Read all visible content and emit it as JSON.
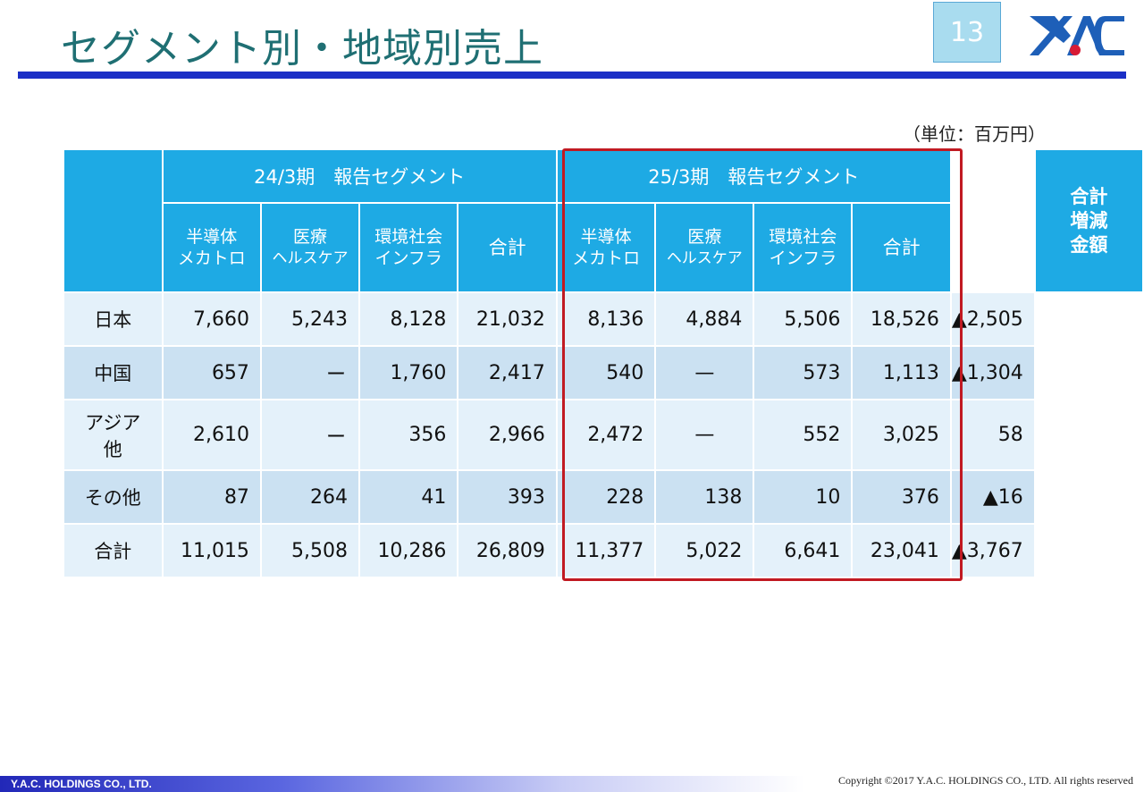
{
  "slide": {
    "title": "セグメント別・地域別売上",
    "page_number": "13",
    "unit_note": "（単位：百万円）",
    "footer_company": "Y.A.C. HOLDINGS CO., LTD.",
    "copyright": "Copyright ©2017 Y.A.C. HOLDINGS CO., LTD.  All rights reserved",
    "colors": {
      "title": "#1f6f73",
      "rule": "#1b2fc6",
      "header": "#1eaae4",
      "highlight": "#c11a22"
    }
  },
  "table": {
    "group_headers": [
      "24/3期　報告セグメント",
      "25/3期　報告セグメント"
    ],
    "total_change_header": [
      "合計",
      "増減",
      "金額"
    ],
    "sub_headers": [
      {
        "line1": "半導体",
        "line2": "メカトロ"
      },
      {
        "line1": "医療",
        "line2": "ヘルスケア"
      },
      {
        "line1": "環境社会",
        "line2": "インフラ"
      },
      {
        "line1": "合計",
        "line2": ""
      },
      {
        "line1": "半導体",
        "line2": "メカトロ"
      },
      {
        "line1": "医療",
        "line2": "ヘルスケア"
      },
      {
        "line1": "環境社会",
        "line2": "インフラ"
      },
      {
        "line1": "合計",
        "line2": ""
      }
    ],
    "rows": [
      {
        "label": [
          "日本"
        ],
        "values": [
          "7,660",
          "5,243",
          "8,128",
          "21,032",
          "8,136",
          "4,884",
          "5,506",
          "18,526"
        ],
        "change": "▲2,505"
      },
      {
        "label": [
          "中国"
        ],
        "values": [
          "657",
          "ー",
          "1,760",
          "2,417",
          "540",
          "—",
          "573",
          "1,113"
        ],
        "change": "▲1,304"
      },
      {
        "label": [
          "アジア",
          "他"
        ],
        "values": [
          "2,610",
          "ー",
          "356",
          "2,966",
          "2,472",
          "—",
          "552",
          "3,025"
        ],
        "change": "58"
      },
      {
        "label": [
          "その他"
        ],
        "values": [
          "87",
          "264",
          "41",
          "393",
          "228",
          "138",
          "10",
          "376"
        ],
        "change": "▲16"
      },
      {
        "label": [
          "合計"
        ],
        "values": [
          "11,015",
          "5,508",
          "10,286",
          "26,809",
          "11,377",
          "5,022",
          "6,641",
          "23,041"
        ],
        "change": "▲3,767"
      }
    ]
  }
}
